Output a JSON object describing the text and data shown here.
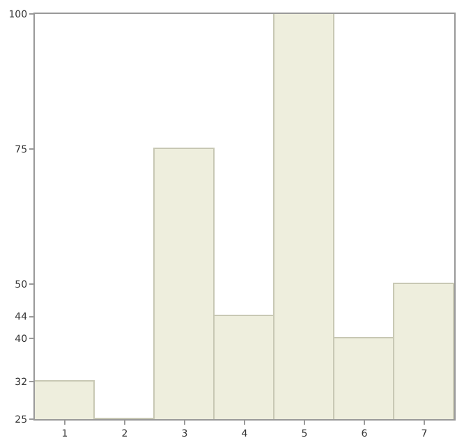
{
  "chart_data": {
    "type": "bar",
    "categories": [
      "1",
      "2",
      "3",
      "4",
      "5",
      "6",
      "7"
    ],
    "values": [
      32,
      25,
      75,
      44,
      100,
      40,
      50
    ],
    "color": "#eeeedd",
    "ylim": [
      25,
      100
    ],
    "yticks": [
      25,
      32,
      40,
      44,
      50,
      75,
      100
    ],
    "legend": false
  }
}
